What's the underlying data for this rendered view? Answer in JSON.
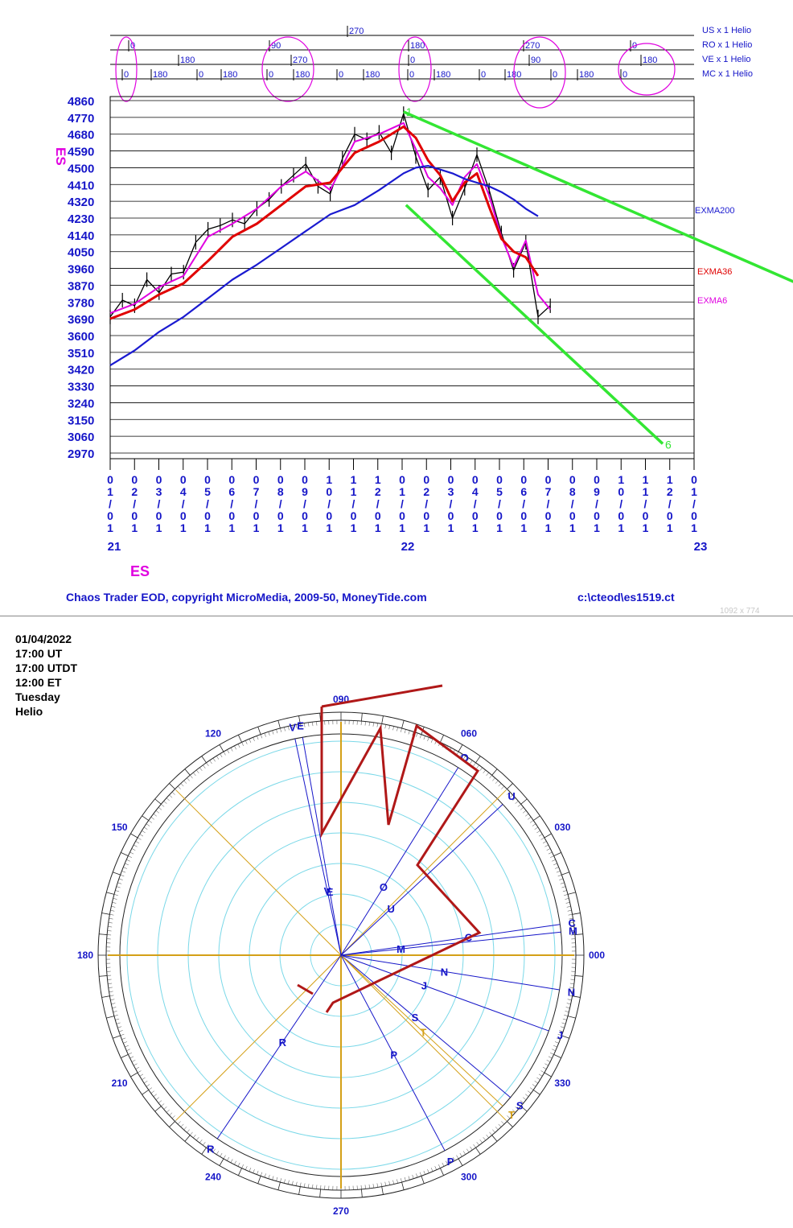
{
  "header": {
    "cycle_rows": [
      "US x 1 Helio",
      "RO x 1 Helio",
      "VE x 1 Helio",
      "MC x 1 Helio"
    ]
  },
  "footer": {
    "credit": "Chaos Trader EOD, copyright MicroMedia, 2009-50, MoneyTide.com",
    "file": "c:\\cteod\\es1519.ct",
    "dims": "1092 x 774"
  },
  "info": {
    "date": "01/04/2022",
    "ut": "17:00 UT",
    "utdt": "17:00 UTDT",
    "et": "12:00 ET",
    "day": "Tuesday",
    "mode": "Helio"
  },
  "colors": {
    "price": "#000000",
    "exma6": "#e000e0",
    "exma36": "#e00000",
    "exma200": "#1a1ad0",
    "trend": "#33e633",
    "axis_text": "#1515c8",
    "circle_highlight": "#e000e0",
    "wheel_ring": "#7ad8e8",
    "wheel_axis": "#d4a017",
    "wheel_poly": "#b01818"
  },
  "chart_data": {
    "type": "line",
    "symbol": "ES",
    "ylabel": "ES",
    "xlabel": "ES",
    "ylim": [
      2970,
      4860
    ],
    "y_ticks": [
      4860,
      4770,
      4680,
      4590,
      4500,
      4410,
      4320,
      4230,
      4140,
      4050,
      3960,
      3870,
      3780,
      3690,
      3600,
      3510,
      3420,
      3330,
      3240,
      3150,
      3060,
      2970
    ],
    "x_ticks": [
      "01/01",
      "02/01",
      "03/01",
      "04/01",
      "05/01",
      "06/01",
      "07/01",
      "08/01",
      "09/01",
      "10/01",
      "11/01",
      "12/01",
      "01/01",
      "02/01",
      "03/01",
      "04/01",
      "05/01",
      "06/01",
      "07/01",
      "08/01",
      "09/01",
      "10/01",
      "11/01",
      "12/01",
      "01/01"
    ],
    "year_labels": [
      "21",
      "22",
      "23"
    ],
    "series": [
      {
        "name": "ES",
        "x": [
          0,
          0.5,
          1,
          1.5,
          2,
          2.5,
          3,
          3.5,
          4,
          4.5,
          5,
          5.5,
          6,
          6.5,
          7,
          7.5,
          8,
          8.5,
          9,
          9.5,
          10,
          10.5,
          11,
          11.5,
          12,
          12.5,
          13,
          13.5,
          14,
          14.5,
          15,
          15.5,
          16,
          16.5,
          17,
          17.5,
          18
        ],
        "values": [
          3700,
          3790,
          3760,
          3900,
          3830,
          3930,
          3940,
          4100,
          4170,
          4190,
          4220,
          4200,
          4280,
          4330,
          4400,
          4460,
          4520,
          4400,
          4360,
          4550,
          4680,
          4650,
          4690,
          4580,
          4790,
          4560,
          4380,
          4450,
          4230,
          4390,
          4570,
          4380,
          4150,
          3950,
          4100,
          3700,
          3760
        ]
      },
      {
        "name": "EXMA6",
        "x": [
          0,
          1,
          2,
          3,
          4,
          5,
          6,
          7,
          8,
          9,
          10,
          11,
          12,
          12.5,
          13,
          13.5,
          14,
          14.5,
          15,
          15.5,
          16,
          16.5,
          17,
          17.5,
          18
        ],
        "values": [
          3720,
          3770,
          3860,
          3920,
          4130,
          4200,
          4280,
          4400,
          4480,
          4380,
          4640,
          4680,
          4740,
          4600,
          4450,
          4390,
          4300,
          4450,
          4520,
          4350,
          4130,
          3970,
          4110,
          3820,
          3740
        ]
      },
      {
        "name": "EXMA36",
        "x": [
          0,
          1,
          2,
          3,
          4,
          5,
          6,
          7,
          8,
          9,
          10,
          11,
          12,
          12.5,
          13,
          13.5,
          14,
          14.5,
          15,
          15.5,
          16,
          16.5,
          17,
          17.5
        ],
        "values": [
          3690,
          3740,
          3820,
          3880,
          4000,
          4130,
          4200,
          4300,
          4400,
          4420,
          4580,
          4640,
          4720,
          4660,
          4540,
          4460,
          4320,
          4420,
          4470,
          4290,
          4120,
          4050,
          4020,
          3920
        ]
      },
      {
        "name": "EXMA200",
        "x": [
          0,
          1,
          2,
          3,
          4,
          5,
          6,
          7,
          8,
          9,
          10,
          11,
          12,
          12.5,
          13,
          13.5,
          14,
          14.5,
          15,
          15.5,
          16,
          16.5,
          17,
          17.5
        ],
        "values": [
          3440,
          3520,
          3620,
          3700,
          3800,
          3900,
          3980,
          4070,
          4160,
          4250,
          4300,
          4380,
          4470,
          4500,
          4510,
          4490,
          4470,
          4440,
          4420,
          4400,
          4370,
          4330,
          4280,
          4240
        ]
      }
    ],
    "trend_lines": [
      {
        "label": "1",
        "x": [
          12,
          28.1
        ],
        "values": [
          4800,
          3880
        ]
      },
      {
        "label": "6",
        "x": [
          12.1,
          22.6
        ],
        "values": [
          4300,
          3020
        ]
      }
    ],
    "cycle_markers": [
      {
        "row": "US x 1 Helio",
        "labels": [
          "270"
        ]
      },
      {
        "row": "RO x 1 Helio",
        "labels": [
          "0",
          "90",
          "180",
          "270",
          "0"
        ]
      },
      {
        "row": "VE x 1 Helio",
        "labels": [
          "180",
          "270",
          "0",
          "90",
          "180"
        ]
      },
      {
        "row": "MC x 1 Helio",
        "labels": [
          "0",
          "180",
          "0",
          "180",
          "0",
          "180",
          "0",
          "180",
          "0",
          "180",
          "0",
          "180",
          "0",
          "180",
          "0"
        ]
      }
    ],
    "legend": [
      "EXMA200",
      "EXMA36",
      "EXMA6"
    ]
  },
  "wheel": {
    "degree_labels": [
      "000",
      "030",
      "060",
      "090",
      "120",
      "150",
      "180",
      "210",
      "240",
      "270",
      "300",
      "330"
    ],
    "planet_letters": [
      "O",
      "U",
      "C",
      "M",
      "N",
      "J",
      "S",
      "T",
      "P",
      "R",
      "E",
      "V"
    ]
  }
}
